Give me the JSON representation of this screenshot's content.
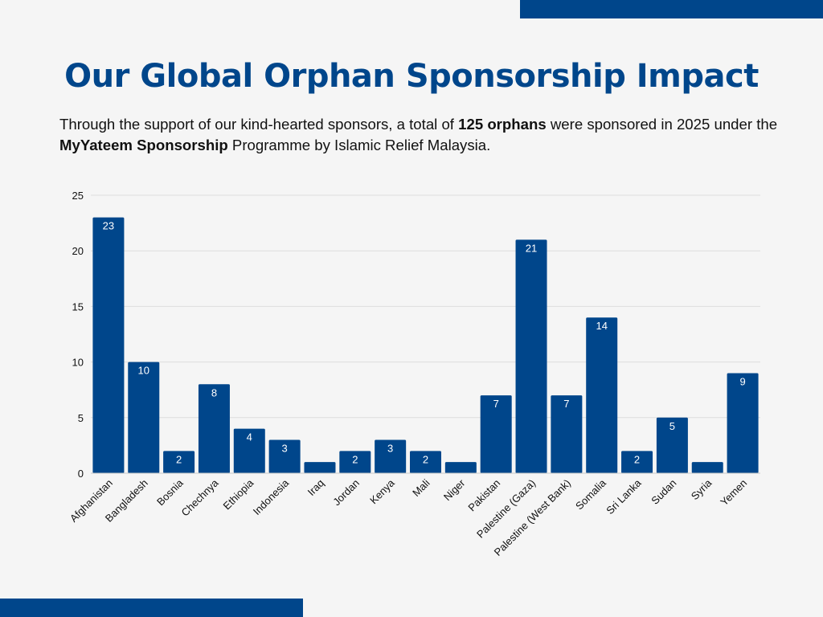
{
  "header": {
    "title": "Our Global Orphan Sponsorship Impact",
    "subtitle_parts": [
      "Through the support of our kind-hearted sponsors, a total of ",
      "125 orphans",
      " were sponsored in 2025 under the ",
      "MyYateem Sponsorship",
      " Programme by Islamic Relief Malaysia."
    ]
  },
  "colors": {
    "accent": "#00468b",
    "background": "#f5f5f5",
    "grid": "#dddddd"
  },
  "chart_data": {
    "type": "bar",
    "title": "",
    "xlabel": "",
    "ylabel": "",
    "ylim": [
      0,
      25
    ],
    "yticks": [
      0,
      5,
      10,
      15,
      20,
      25
    ],
    "grid": true,
    "legend": "none",
    "categories": [
      "Afghanistan",
      "Bangladesh",
      "Bosnia",
      "Chechnya",
      "Ethiopia",
      "Indonesia",
      "Iraq",
      "Jordan",
      "Kenya",
      "Mali",
      "Niger",
      "Pakistan",
      "Palestine (Gaza)",
      "Palestine (West Bank)",
      "Somalia",
      "Sri Lanka",
      "Sudan",
      "Syria",
      "Yemen"
    ],
    "values": [
      23,
      10,
      2,
      8,
      4,
      3,
      1,
      2,
      3,
      2,
      1,
      7,
      21,
      7,
      14,
      2,
      5,
      1,
      9
    ],
    "data_labels": [
      "23",
      "10",
      "2",
      "8",
      "4",
      "3",
      "",
      "2",
      "3",
      "2",
      "",
      "7",
      "21",
      "7",
      "14",
      "2",
      "5",
      "",
      "9"
    ]
  }
}
